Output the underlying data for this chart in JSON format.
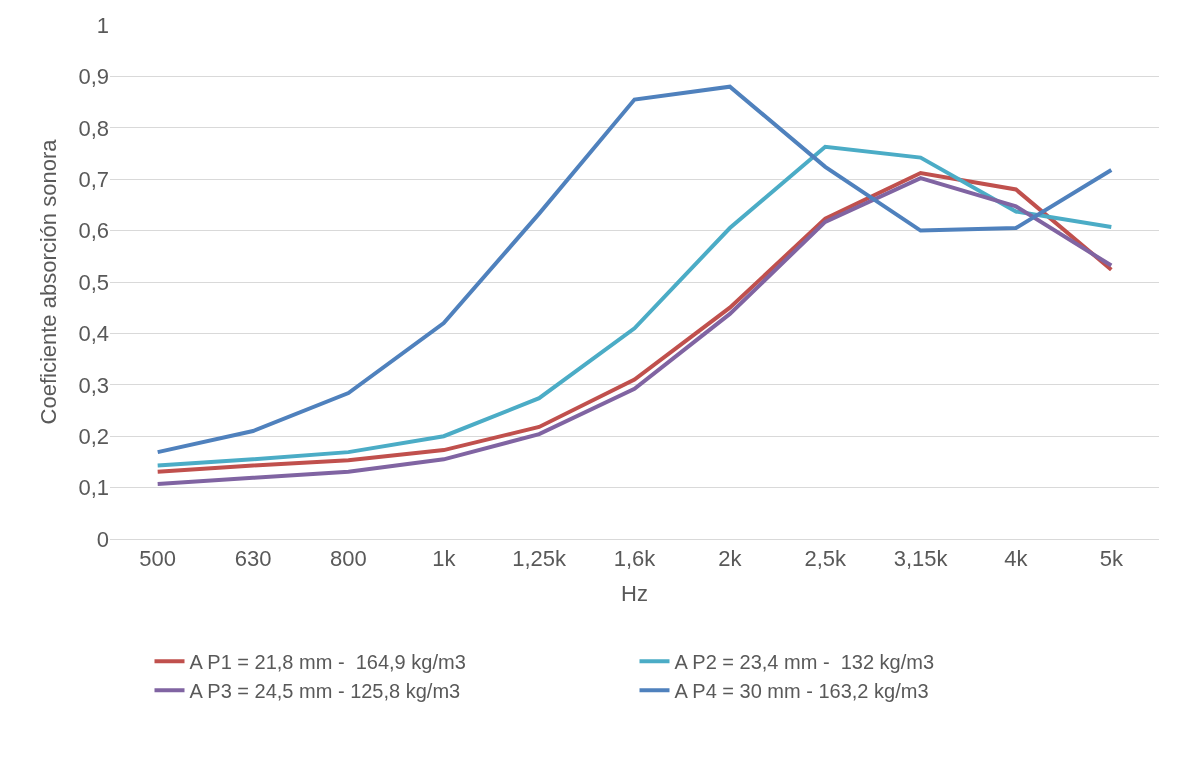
{
  "chart_data": {
    "type": "line",
    "xlabel": "Hz",
    "ylabel": "Coeficiente absorción sonora",
    "categories": [
      "500",
      "630",
      "800",
      "1k",
      "1,25k",
      "1,6k",
      "2k",
      "2,5k",
      "3,15k",
      "4k",
      "5k"
    ],
    "series": [
      {
        "name": "A P1 = 21,8 mm -  164,9 kg/m3",
        "color": "#c0504d",
        "values": [
          0.131,
          0.143,
          0.153,
          0.173,
          0.218,
          0.31,
          0.45,
          0.623,
          0.712,
          0.68,
          0.524
        ]
      },
      {
        "name": "A P2 = 23,4 mm -  132 kg/m3",
        "color": "#4bacc6",
        "values": [
          0.143,
          0.155,
          0.169,
          0.2,
          0.274,
          0.41,
          0.605,
          0.763,
          0.742,
          0.637,
          0.607
        ]
      },
      {
        "name": "A P3 = 24,5 mm - 125,8 kg/m3",
        "color": "#8064a2",
        "values": [
          0.107,
          0.119,
          0.131,
          0.155,
          0.204,
          0.292,
          0.438,
          0.617,
          0.702,
          0.647,
          0.532
        ]
      },
      {
        "name": "A P4 = 30 mm - 163,2 kg/m3",
        "color": "#4f81bd",
        "values": [
          0.169,
          0.21,
          0.284,
          0.42,
          0.633,
          0.855,
          0.88,
          0.724,
          0.6,
          0.605,
          0.718
        ]
      }
    ],
    "ylim": [
      0,
      1
    ],
    "yticks": [
      0,
      {
        "value": 0.1,
        "label": "0,1"
      },
      {
        "value": 0.2,
        "label": "0,2"
      },
      {
        "value": 0.3,
        "label": "0,3"
      },
      {
        "value": 0.4,
        "label": "0,4"
      },
      {
        "value": 0.5,
        "label": "0,5"
      },
      {
        "value": 0.6,
        "label": "0,6"
      },
      {
        "value": 0.7,
        "label": "0,7"
      },
      {
        "value": 0.8,
        "label": "0,8"
      },
      {
        "value": 0.9,
        "label": "0,9"
      },
      1
    ],
    "grid": "y",
    "legend": "bottom",
    "marker": "none",
    "line_style": "solid"
  }
}
